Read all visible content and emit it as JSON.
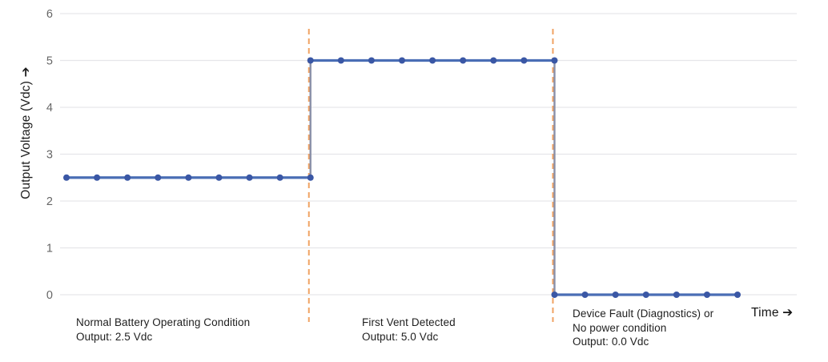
{
  "chart_data": {
    "type": "line",
    "subtype": "step",
    "title": "",
    "xlabel": "Time ➔",
    "ylabel": "Output Voltage (Vdc) ➔",
    "ylim": [
      0,
      6
    ],
    "yticks": [
      0,
      1,
      2,
      3,
      4,
      5,
      6
    ],
    "x_range_units": [
      0,
      22
    ],
    "marker_step": 1,
    "grid": true,
    "legend": false,
    "segments": [
      {
        "label": "Normal Battery Operating Condition",
        "output": "2.5 Vdc",
        "value": 2.5,
        "t_start": 0,
        "t_end": 8
      },
      {
        "label": "First Vent Detected",
        "output": "5.0 Vdc",
        "value": 5.0,
        "t_start": 8,
        "t_end": 16
      },
      {
        "label": "Device Fault (Diagnostics) or No power condition",
        "output": "0.0 Vdc",
        "value": 0.0,
        "t_start": 16,
        "t_end": 22
      }
    ],
    "event_lines_t": [
      8,
      16
    ]
  },
  "annotations": [
    {
      "lines": [
        "Normal Battery Operating Condition",
        "Output: 2.5 Vdc"
      ]
    },
    {
      "lines": [
        "First Vent Detected",
        "Output: 5.0 Vdc"
      ]
    },
    {
      "lines": [
        "Device Fault (Diagnostics) or",
        "No power condition",
        "Output: 0.0 Vdc"
      ]
    }
  ],
  "colors": {
    "line": "#4a6eb5",
    "marker": "#3a57a5",
    "connector": "#8a90a8",
    "event_line": "#f0a262",
    "grid": "#e6e6ea",
    "tick_text": "#666666",
    "label_text": "#1e1e1e"
  }
}
